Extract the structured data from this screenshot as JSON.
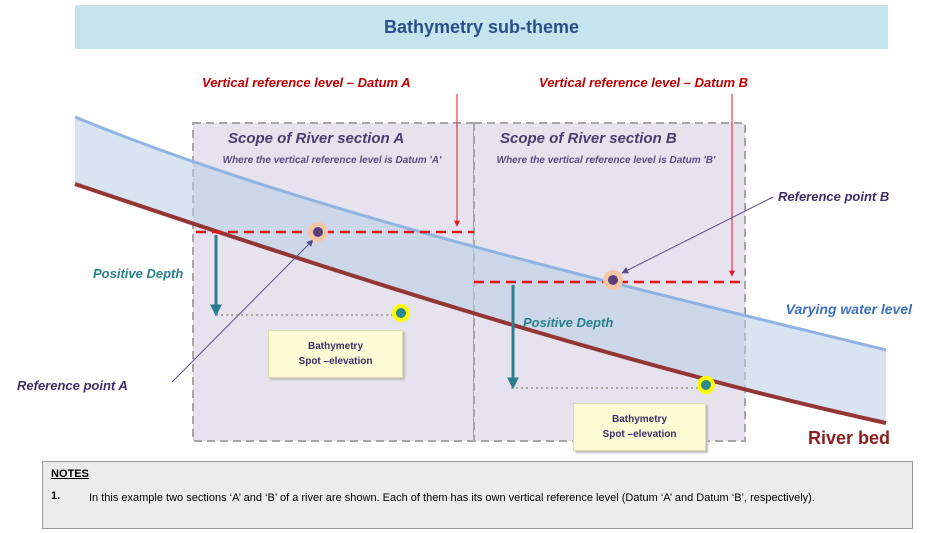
{
  "banner": {
    "title": "Bathymetry sub-theme"
  },
  "datums": {
    "a": "Vertical reference level – Datum A",
    "b": "Vertical reference level – Datum B"
  },
  "sections": {
    "a": {
      "title": "Scope of River section A",
      "subtitle": "Where the vertical reference level is Datum 'A'"
    },
    "b": {
      "title": "Scope of River section B",
      "subtitle": "Where the vertical reference level is Datum 'B'"
    }
  },
  "labels": {
    "positive_depth_a": "Positive Depth",
    "positive_depth_b": "Positive Depth",
    "reference_point_a": "Reference point A",
    "reference_point_b": "Reference point B",
    "varying_water_level": "Varying water level",
    "river_bed": "River bed",
    "spot_a": [
      "Bathymetry",
      "Spot –elevation"
    ],
    "spot_b": [
      "Bathymetry",
      "Spot –elevation"
    ]
  },
  "notes": {
    "heading": "NOTES",
    "items": [
      {
        "number": "1.",
        "text": "In this example two sections ‘A’ and ‘B’ of a river are shown. Each of them has its own vertical reference level (Datum ‘A’ and Datum ‘B’, respectively)."
      }
    ]
  },
  "colors": {
    "water_surface": "#8fb4e3",
    "river_bed": "#943634",
    "datum_line": "#e8141a",
    "depth_arrow": "#2e7d8f",
    "section_fill": "#e6e2ee"
  }
}
